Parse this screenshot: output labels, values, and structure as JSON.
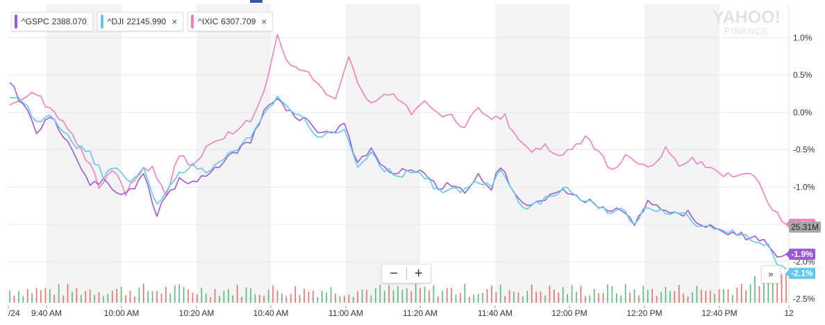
{
  "legend": [
    {
      "symbol": "^GSPC",
      "value": "2388.070",
      "color": "#9b59d6",
      "closable": false
    },
    {
      "symbol": "^DJI",
      "value": "22145.990",
      "color": "#62c7ec",
      "closable": true,
      "close_icon": "×"
    },
    {
      "symbol": "^IXIC",
      "value": "6307.709",
      "color": "#f07ec0",
      "closable": true,
      "close_icon": "×"
    }
  ],
  "logo": {
    "line1": "YAHOO!",
    "line2": "FINANCE"
  },
  "controls": {
    "zoom_out": "−",
    "zoom_in": "+",
    "expand": "»"
  },
  "chart_data": {
    "type": "line",
    "x_ticks": [
      "/24",
      "9:40 AM",
      "10:00 AM",
      "10:20 AM",
      "10:40 AM",
      "11:00 AM",
      "11:20 AM",
      "11:40 AM",
      "12:00 PM",
      "12:20 PM",
      "12:40 PM",
      "12"
    ],
    "y_ticks": [
      "1.0%",
      "0.5%",
      "0.0%",
      "-0.5%",
      "-1.0%",
      "-1.5%",
      "-2.0%",
      "-2.5%"
    ],
    "y_values": [
      1.0,
      0.5,
      0.0,
      -0.5,
      -1.0,
      -1.5,
      -2.0,
      -2.5
    ],
    "ylim": [
      -2.55,
      1.45
    ],
    "grid": true,
    "volume_badge": {
      "label": "25.31M",
      "color": "#a8a8a8"
    },
    "end_badges": [
      {
        "series": "^IXIC",
        "label": "-1.5%",
        "value": -1.5,
        "color": "#f07ec0"
      },
      {
        "series": "^GSPC",
        "label": "-1.9%",
        "value": -1.9,
        "color": "#9b59d6"
      },
      {
        "series": "^DJI",
        "label": "-2.1%",
        "value": -2.1,
        "color": "#62c7ec"
      }
    ],
    "series": [
      {
        "name": "^IXIC",
        "color": "#f07ec0",
        "anchors": [
          [
            0,
            0.1
          ],
          [
            5,
            0.3
          ],
          [
            10,
            0.0
          ],
          [
            14,
            -0.3
          ],
          [
            18,
            -0.7
          ],
          [
            20,
            -1.0
          ],
          [
            23,
            -0.75
          ],
          [
            26,
            -1.1
          ],
          [
            29,
            -0.8
          ],
          [
            32,
            -0.75
          ],
          [
            35,
            -1.1
          ],
          [
            38,
            -0.55
          ],
          [
            41,
            -0.75
          ],
          [
            44,
            -0.45
          ],
          [
            47,
            -0.4
          ],
          [
            50,
            -0.25
          ],
          [
            54,
            -0.1
          ],
          [
            57,
            0.3
          ],
          [
            60,
            1.0
          ],
          [
            63,
            0.6
          ],
          [
            66,
            0.6
          ],
          [
            69,
            0.4
          ],
          [
            71,
            0.2
          ],
          [
            73,
            0.2
          ],
          [
            76,
            0.7
          ],
          [
            79,
            0.3
          ],
          [
            81,
            0.1
          ],
          [
            84,
            0.25
          ],
          [
            87,
            0.2
          ],
          [
            90,
            0.0
          ],
          [
            93,
            0.15
          ],
          [
            96,
            0.0
          ],
          [
            99,
            -0.05
          ],
          [
            102,
            -0.2
          ],
          [
            105,
            0.05
          ],
          [
            108,
            -0.1
          ],
          [
            111,
            -0.05
          ],
          [
            114,
            -0.4
          ],
          [
            117,
            -0.5
          ],
          [
            120,
            -0.45
          ],
          [
            123,
            -0.55
          ],
          [
            126,
            -0.5
          ],
          [
            129,
            -0.35
          ],
          [
            132,
            -0.5
          ],
          [
            135,
            -0.8
          ],
          [
            138,
            -0.55
          ],
          [
            141,
            -0.65
          ],
          [
            144,
            -0.75
          ],
          [
            147,
            -0.5
          ],
          [
            150,
            -0.7
          ],
          [
            153,
            -0.6
          ],
          [
            156,
            -0.75
          ],
          [
            159,
            -0.8
          ],
          [
            162,
            -0.85
          ],
          [
            165,
            -0.8
          ],
          [
            168,
            -0.95
          ],
          [
            170,
            -1.2
          ],
          [
            172,
            -1.35
          ],
          [
            174,
            -1.5
          ]
        ]
      },
      {
        "name": "^GSPC",
        "color": "#9b59d6",
        "anchors": [
          [
            0,
            0.4
          ],
          [
            3,
            0.1
          ],
          [
            6,
            -0.25
          ],
          [
            9,
            -0.05
          ],
          [
            12,
            -0.3
          ],
          [
            15,
            -0.6
          ],
          [
            18,
            -1.0
          ],
          [
            21,
            -0.9
          ],
          [
            24,
            -1.1
          ],
          [
            27,
            -1.05
          ],
          [
            30,
            -0.85
          ],
          [
            33,
            -1.35
          ],
          [
            35,
            -1.15
          ],
          [
            38,
            -0.9
          ],
          [
            41,
            -0.95
          ],
          [
            44,
            -0.85
          ],
          [
            47,
            -0.7
          ],
          [
            50,
            -0.55
          ],
          [
            54,
            -0.4
          ],
          [
            57,
            0.0
          ],
          [
            60,
            0.2
          ],
          [
            63,
            0.0
          ],
          [
            66,
            -0.1
          ],
          [
            69,
            -0.25
          ],
          [
            72,
            -0.3
          ],
          [
            75,
            -0.15
          ],
          [
            78,
            -0.7
          ],
          [
            81,
            -0.5
          ],
          [
            84,
            -0.75
          ],
          [
            87,
            -0.8
          ],
          [
            90,
            -0.75
          ],
          [
            93,
            -0.8
          ],
          [
            96,
            -1.0
          ],
          [
            99,
            -0.95
          ],
          [
            102,
            -1.05
          ],
          [
            105,
            -0.85
          ],
          [
            108,
            -1.0
          ],
          [
            110,
            -0.7
          ],
          [
            113,
            -1.1
          ],
          [
            116,
            -1.25
          ],
          [
            119,
            -1.2
          ],
          [
            122,
            -1.1
          ],
          [
            125,
            -1.05
          ],
          [
            128,
            -1.15
          ],
          [
            131,
            -1.2
          ],
          [
            134,
            -1.35
          ],
          [
            137,
            -1.3
          ],
          [
            140,
            -1.5
          ],
          [
            143,
            -1.2
          ],
          [
            146,
            -1.3
          ],
          [
            149,
            -1.35
          ],
          [
            152,
            -1.35
          ],
          [
            155,
            -1.5
          ],
          [
            158,
            -1.55
          ],
          [
            161,
            -1.6
          ],
          [
            164,
            -1.65
          ],
          [
            167,
            -1.7
          ],
          [
            170,
            -1.75
          ],
          [
            172,
            -1.95
          ],
          [
            174,
            -1.9
          ]
        ]
      },
      {
        "name": "^DJI",
        "color": "#62c7ec",
        "anchors": [
          [
            0,
            0.2
          ],
          [
            3,
            0.15
          ],
          [
            6,
            -0.15
          ],
          [
            9,
            0.0
          ],
          [
            12,
            -0.25
          ],
          [
            15,
            -0.45
          ],
          [
            18,
            -0.55
          ],
          [
            21,
            -0.85
          ],
          [
            24,
            -0.75
          ],
          [
            27,
            -0.95
          ],
          [
            30,
            -0.75
          ],
          [
            33,
            -1.25
          ],
          [
            35,
            -1.05
          ],
          [
            38,
            -0.8
          ],
          [
            41,
            -0.7
          ],
          [
            44,
            -0.8
          ],
          [
            47,
            -0.65
          ],
          [
            50,
            -0.5
          ],
          [
            54,
            -0.35
          ],
          [
            57,
            0.0
          ],
          [
            60,
            0.2
          ],
          [
            63,
            0.0
          ],
          [
            66,
            -0.1
          ],
          [
            69,
            -0.3
          ],
          [
            72,
            -0.3
          ],
          [
            75,
            -0.2
          ],
          [
            78,
            -0.75
          ],
          [
            81,
            -0.55
          ],
          [
            84,
            -0.75
          ],
          [
            87,
            -0.85
          ],
          [
            90,
            -0.8
          ],
          [
            93,
            -0.85
          ],
          [
            96,
            -1.05
          ],
          [
            99,
            -1.0
          ],
          [
            102,
            -1.05
          ],
          [
            105,
            -0.9
          ],
          [
            108,
            -1.0
          ],
          [
            110,
            -0.8
          ],
          [
            113,
            -1.1
          ],
          [
            116,
            -1.3
          ],
          [
            119,
            -1.2
          ],
          [
            122,
            -1.1
          ],
          [
            125,
            -1.0
          ],
          [
            128,
            -1.15
          ],
          [
            131,
            -1.2
          ],
          [
            134,
            -1.35
          ],
          [
            137,
            -1.3
          ],
          [
            140,
            -1.5
          ],
          [
            143,
            -1.25
          ],
          [
            146,
            -1.3
          ],
          [
            149,
            -1.35
          ],
          [
            152,
            -1.4
          ],
          [
            155,
            -1.55
          ],
          [
            158,
            -1.55
          ],
          [
            161,
            -1.6
          ],
          [
            164,
            -1.65
          ],
          [
            167,
            -1.7
          ],
          [
            170,
            -1.8
          ],
          [
            172,
            -2.05
          ],
          [
            174,
            -2.1
          ]
        ]
      }
    ]
  }
}
